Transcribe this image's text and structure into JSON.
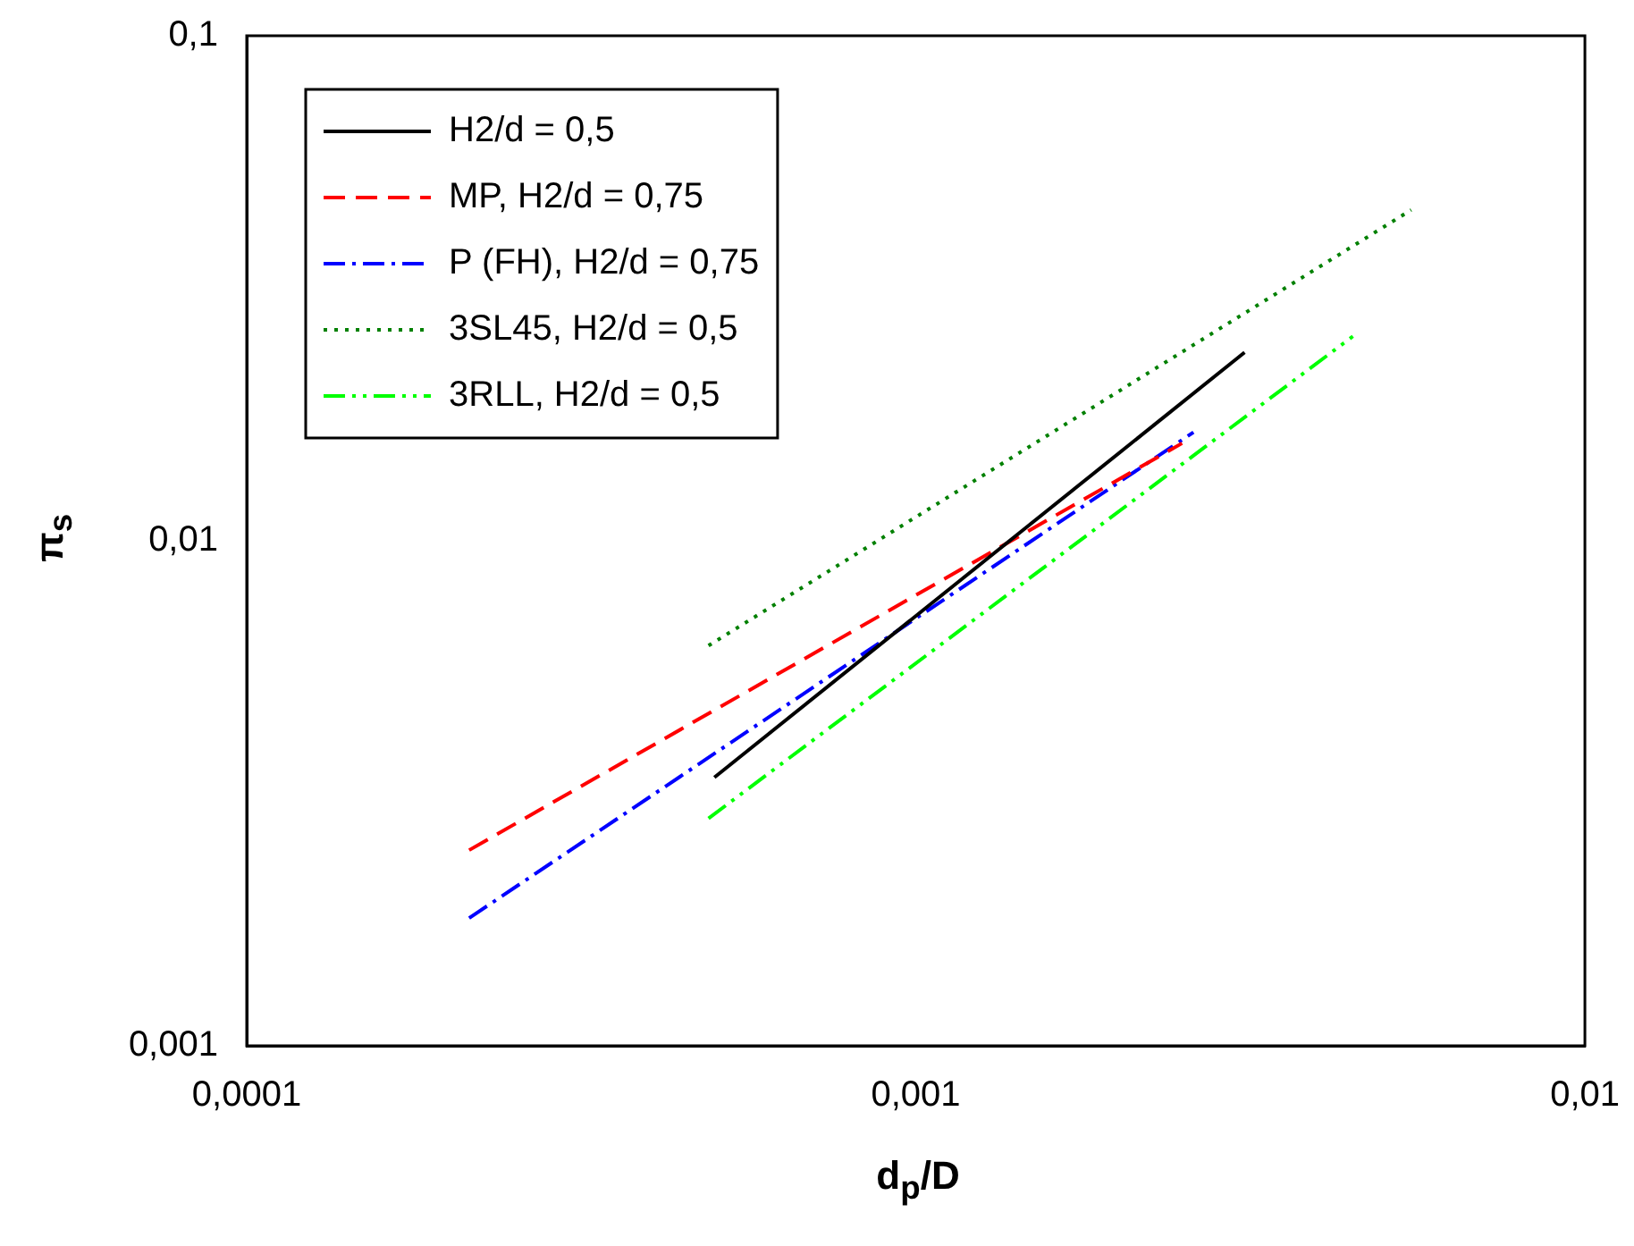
{
  "chart_data": {
    "type": "line",
    "xlabel": "d$_{p}$/D",
    "ylabel": "π$_{s}$",
    "log": "xy",
    "xlim": [
      0.0001,
      0.01
    ],
    "ylim": [
      0.001,
      0.1
    ],
    "xticks": [
      {
        "value": 0.0001,
        "label": "0,0001"
      },
      {
        "value": 0.001,
        "label": "0,001"
      },
      {
        "value": 0.01,
        "label": "0,01"
      }
    ],
    "yticks": [
      {
        "value": 0.001,
        "label": "0,001"
      },
      {
        "value": 0.01,
        "label": "0,01"
      },
      {
        "value": 0.1,
        "label": "0,1"
      }
    ],
    "grid": false,
    "legend": "top left",
    "marker": "none",
    "series": [
      {
        "name": "H2/d = 0,5",
        "color": "#000000",
        "line_style": "solid",
        "x": [
          0.0005,
          0.0031
        ],
        "values": [
          0.0034,
          0.0236
        ]
      },
      {
        "name": "MP, H2/d = 0,75",
        "color": "#ff0000",
        "line_style": "dashed",
        "x": [
          0.000215,
          0.0025
        ],
        "values": [
          0.00244,
          0.0156
        ]
      },
      {
        "name": "P (FH), H2/d = 0,75",
        "color": "#0000ff",
        "line_style": "dashdot",
        "x": [
          0.000215,
          0.0026
        ],
        "values": [
          0.00179,
          0.0164
        ]
      },
      {
        "name": "3SL45, H2/d = 0,5",
        "color": "#008000",
        "line_style": "dotted",
        "x": [
          0.00049,
          0.0055
        ],
        "values": [
          0.0062,
          0.0452
        ]
      },
      {
        "name": "3RLL, H2/d = 0,5",
        "color": "#00ff00",
        "line_style": "dashdotdot",
        "x": [
          0.00049,
          0.0045
        ],
        "values": [
          0.00282,
          0.0254
        ]
      }
    ]
  }
}
